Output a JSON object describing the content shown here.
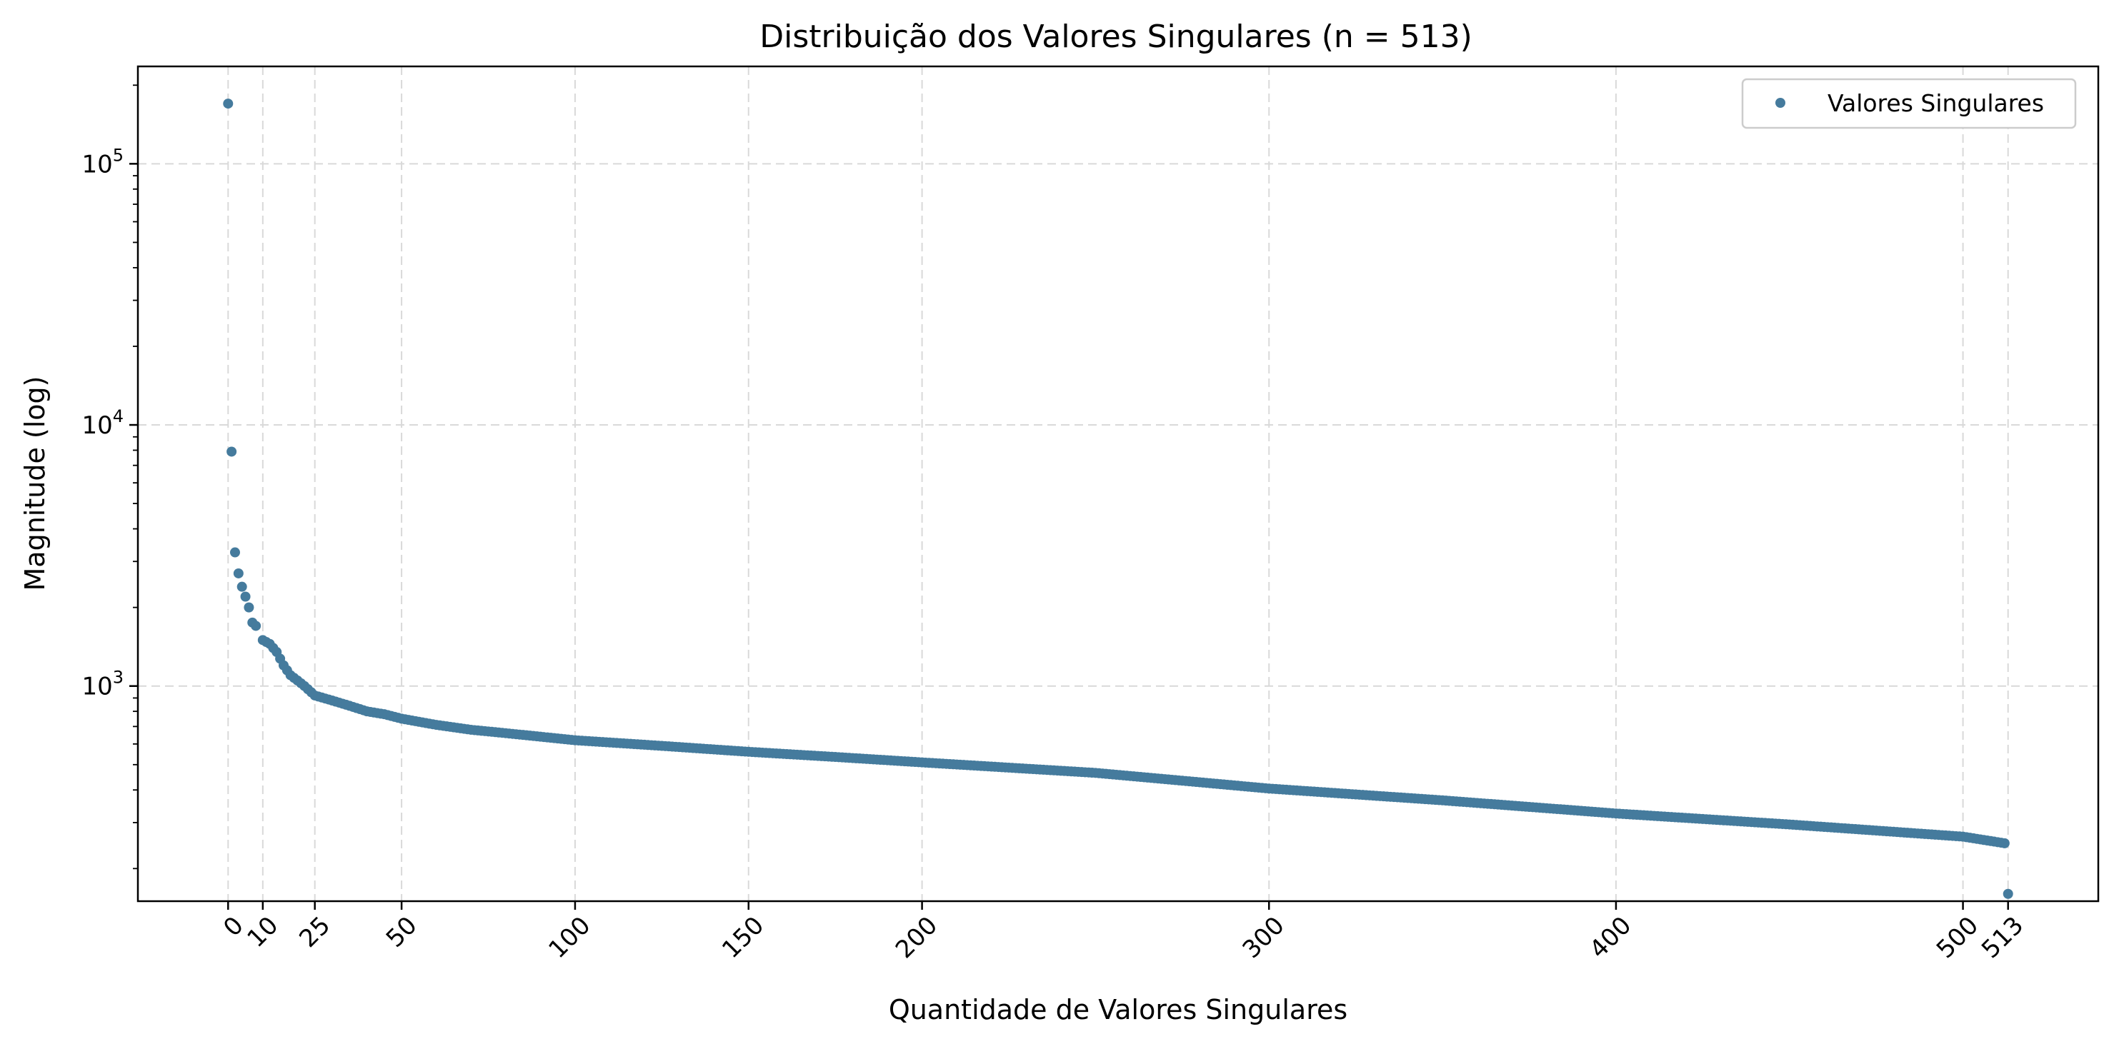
{
  "chart_data": {
    "type": "scatter",
    "title": "Distribuição dos Valores Singulares (n = 513)",
    "xlabel": "Quantidade de Valores Singulares",
    "ylabel": "Magnitude (log)",
    "yscale": "log",
    "xlim": [
      -26,
      539
    ],
    "ylim": [
      150,
      236000
    ],
    "grid": true,
    "legend": {
      "position": "top-right",
      "entries": [
        "Valores Singulares"
      ]
    },
    "marker_color": "#457b9d",
    "x_ticks": [
      {
        "value": 0,
        "label": "0"
      },
      {
        "value": 10,
        "label": "10"
      },
      {
        "value": 25,
        "label": "25"
      },
      {
        "value": 50,
        "label": "50"
      },
      {
        "value": 100,
        "label": "100"
      },
      {
        "value": 150,
        "label": "150"
      },
      {
        "value": 200,
        "label": "200"
      },
      {
        "value": 300,
        "label": "300"
      },
      {
        "value": 400,
        "label": "400"
      },
      {
        "value": 500,
        "label": "500"
      },
      {
        "value": 513,
        "label": "513"
      }
    ],
    "y_ticks": [
      {
        "value": 1000,
        "base": "10",
        "exp": "3"
      },
      {
        "value": 10000,
        "base": "10",
        "exp": "4"
      },
      {
        "value": 100000,
        "base": "10",
        "exp": "5"
      }
    ],
    "series": [
      {
        "name": "Valores Singulares",
        "x": [
          0,
          1,
          2,
          3,
          4,
          5,
          6,
          7,
          8,
          9,
          10,
          12,
          14,
          16,
          18,
          20,
          22,
          25,
          30,
          35,
          40,
          45,
          50,
          60,
          70,
          80,
          100,
          125,
          150,
          175,
          200,
          250,
          300,
          350,
          400,
          450,
          500,
          512,
          513
        ],
        "values": [
          170000,
          7900,
          3250,
          2700,
          2400,
          2200,
          2000,
          1750,
          1700,
          1560,
          1500,
          1450,
          1350,
          1200,
          1100,
          1050,
          1000,
          920,
          880,
          840,
          800,
          780,
          750,
          710,
          680,
          660,
          620,
          590,
          560,
          535,
          510,
          465,
          405,
          365,
          325,
          295,
          265,
          250,
          160
        ]
      }
    ]
  }
}
